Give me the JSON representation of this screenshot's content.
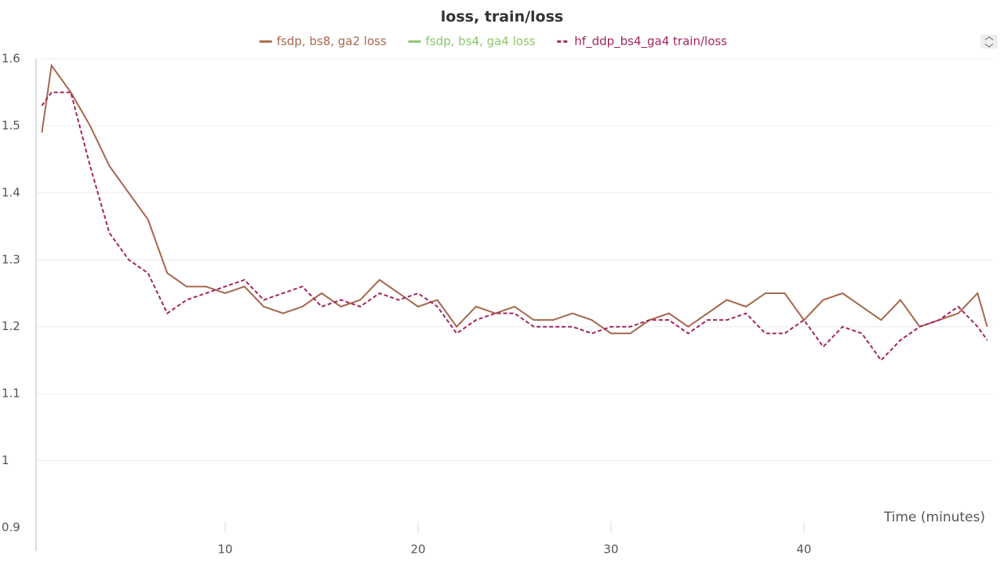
{
  "chart_data": {
    "type": "line",
    "title": "loss, train/loss",
    "x_label": "Time (minutes)",
    "x": [
      0.5,
      1,
      2,
      3,
      4,
      5,
      6,
      7,
      8,
      9,
      10,
      11,
      12,
      13,
      14,
      15,
      16,
      17,
      18,
      19,
      20,
      21,
      22,
      23,
      24,
      25,
      26,
      27,
      28,
      29,
      30,
      31,
      32,
      33,
      34,
      35,
      36,
      37,
      38,
      39,
      40,
      41,
      42,
      43,
      44,
      45,
      46,
      47,
      48,
      49,
      49.5
    ],
    "series": [
      {
        "name": "fsdp, bs8, ga2 loss",
        "color": "#a5674c",
        "dashed": false,
        "values": [
          1.49,
          1.59,
          1.55,
          1.5,
          1.44,
          1.4,
          1.36,
          1.28,
          1.26,
          1.26,
          1.25,
          1.26,
          1.23,
          1.22,
          1.23,
          1.25,
          1.23,
          1.24,
          1.27,
          1.25,
          1.23,
          1.24,
          1.2,
          1.23,
          1.22,
          1.23,
          1.21,
          1.21,
          1.22,
          1.21,
          1.19,
          1.19,
          1.21,
          1.22,
          1.2,
          1.22,
          1.24,
          1.23,
          1.25,
          1.25,
          1.21,
          1.24,
          1.25,
          1.23,
          1.21,
          1.24,
          1.2,
          1.21,
          1.22,
          1.25,
          1.2
        ]
      },
      {
        "name": "fsdp, bs4, ga4 loss",
        "color": "#8cc56c",
        "dashed": false,
        "values": [
          null,
          null,
          null,
          null,
          null,
          null,
          null,
          null,
          null,
          null,
          null,
          null,
          null,
          null,
          null,
          null,
          null,
          null,
          null,
          null,
          null,
          null,
          null,
          null,
          null,
          null,
          null,
          null,
          null,
          null,
          null,
          null,
          null,
          null,
          null,
          null,
          null,
          null,
          null,
          null,
          null,
          null,
          null,
          null,
          null,
          null,
          null,
          null,
          null,
          null,
          null
        ]
      },
      {
        "name": "hf_ddp_bs4_ga4 train/loss",
        "color": "#a3245f",
        "dashed": true,
        "values": [
          1.53,
          1.55,
          1.55,
          1.44,
          1.34,
          1.3,
          1.28,
          1.22,
          1.24,
          1.25,
          1.26,
          1.27,
          1.24,
          1.25,
          1.26,
          1.23,
          1.24,
          1.23,
          1.25,
          1.24,
          1.25,
          1.23,
          1.19,
          1.21,
          1.22,
          1.22,
          1.2,
          1.2,
          1.2,
          1.19,
          1.2,
          1.2,
          1.21,
          1.21,
          1.19,
          1.21,
          1.21,
          1.22,
          1.19,
          1.19,
          1.21,
          1.17,
          1.2,
          1.19,
          1.15,
          1.18,
          1.2,
          1.21,
          1.23,
          1.2,
          1.18
        ]
      }
    ],
    "xlim": [
      0.2,
      49.8
    ],
    "xticks": [
      10,
      20,
      30,
      40
    ],
    "ylim": [
      0.9,
      1.6
    ],
    "yticks": [
      0.9,
      1,
      1.1,
      1.2,
      1.3,
      1.4,
      1.5,
      1.6
    ],
    "grid": true
  }
}
